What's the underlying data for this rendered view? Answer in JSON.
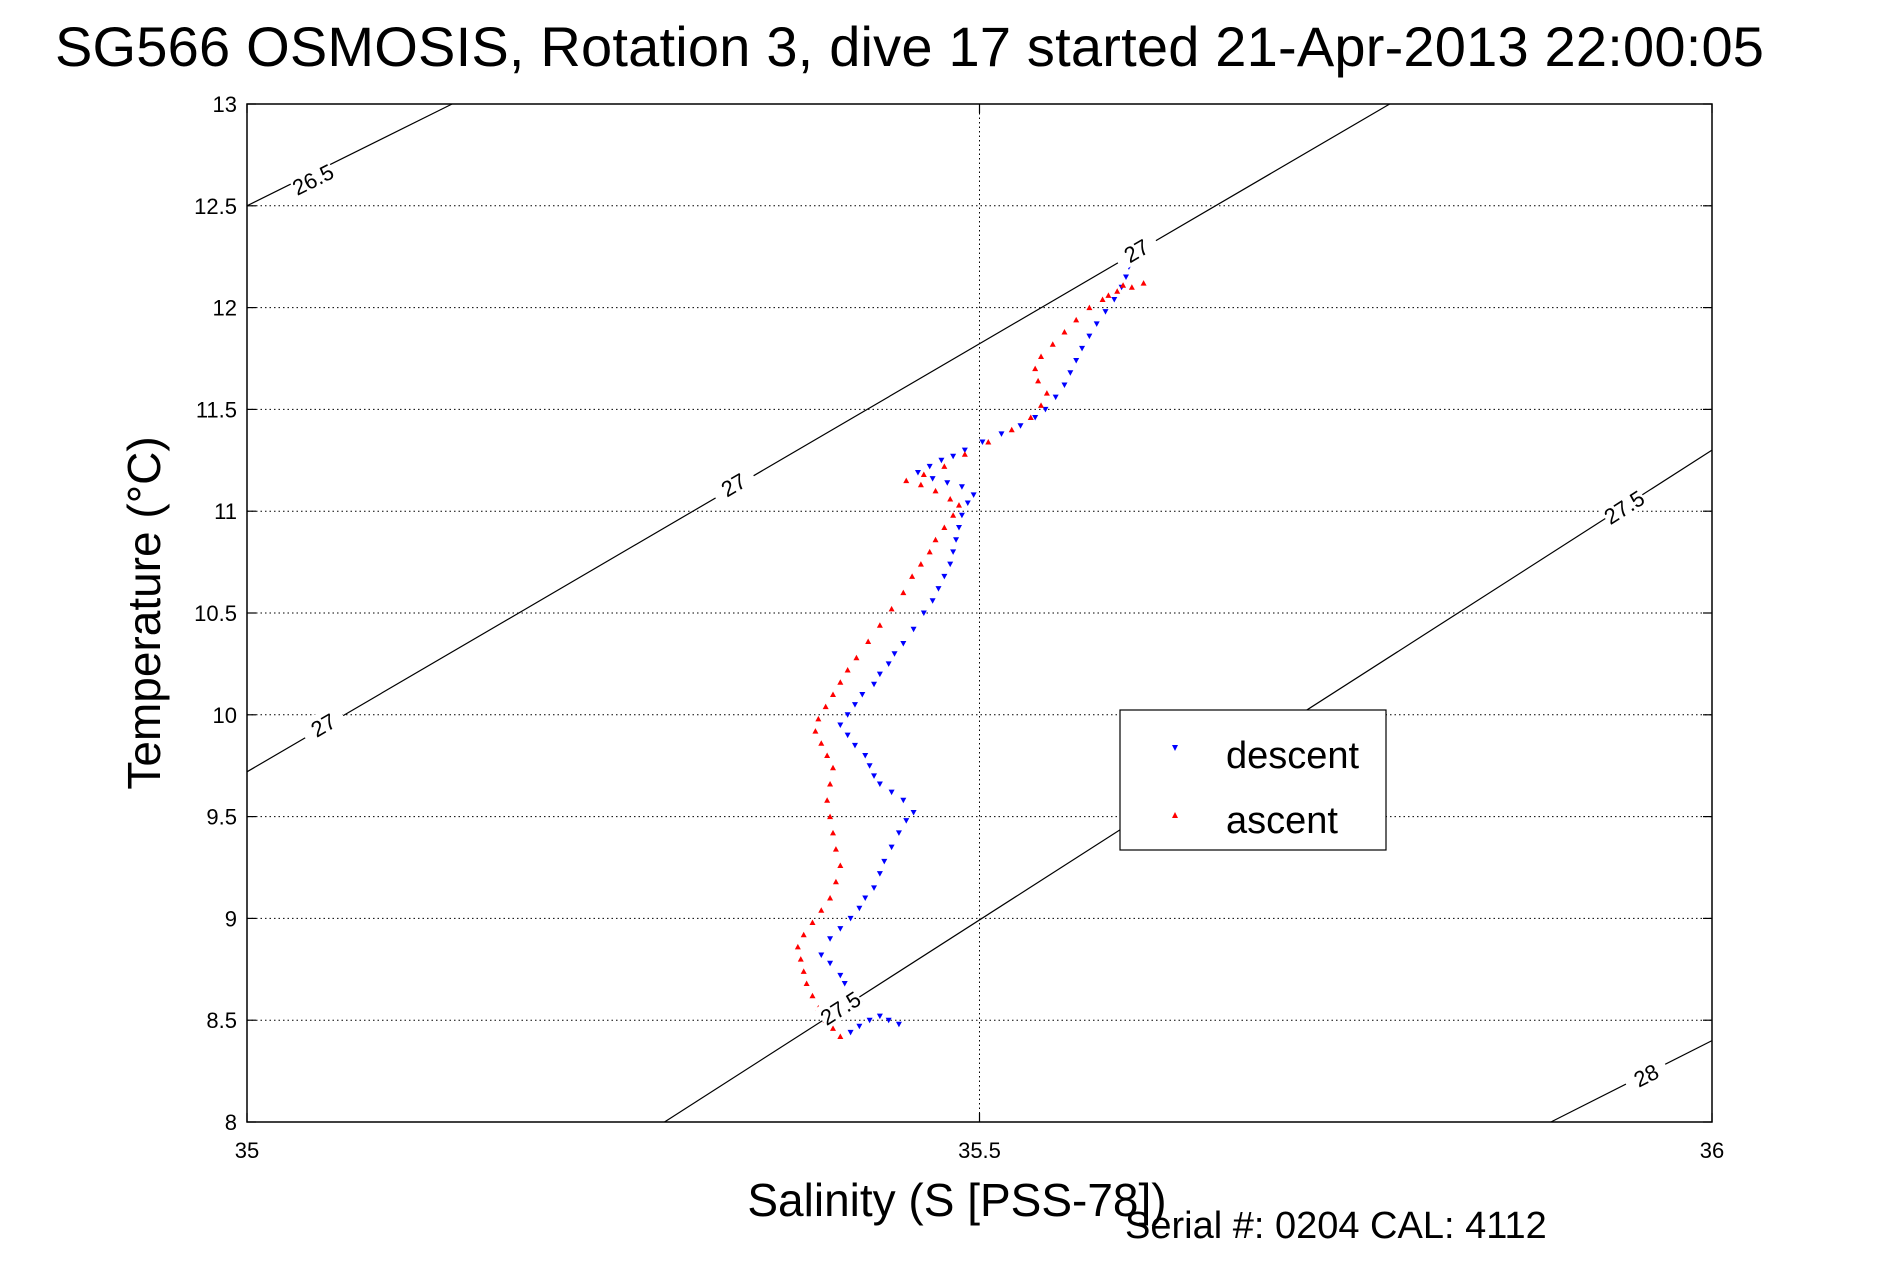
{
  "title": "SG566 OSMOSIS, Rotation 3, dive 17 started 21-Apr-2013 22:00:05",
  "serial_text": "Serial #: 0204  CAL: 4112",
  "colors": {
    "descent": "#0000ff",
    "ascent": "#ff0000",
    "axes": "#000000",
    "grid": "#000000"
  },
  "chart_data": {
    "type": "scatter",
    "title": "SG566 OSMOSIS, Rotation 3, dive 17 started 21-Apr-2013 22:00:05",
    "xlabel": "Salinity (S [PSS-78])",
    "ylabel": "Temperature (°C)",
    "xlim": [
      35,
      36
    ],
    "ylim": [
      8,
      13
    ],
    "xticks": [
      "35",
      "35.5",
      "36"
    ],
    "yticks": [
      "8",
      "8.5",
      "9",
      "9.5",
      "10",
      "10.5",
      "11",
      "11.5",
      "12",
      "12.5",
      "13"
    ],
    "grid": true,
    "legend_position": "center-right",
    "series": [
      {
        "name": "descent",
        "marker": "down-triangle",
        "points": [
          [
            35.412,
            8.44
          ],
          [
            35.418,
            8.47
          ],
          [
            35.425,
            8.5
          ],
          [
            35.432,
            8.52
          ],
          [
            35.438,
            8.5
          ],
          [
            35.445,
            8.48
          ],
          [
            35.418,
            8.58
          ],
          [
            35.412,
            8.62
          ],
          [
            35.408,
            8.68
          ],
          [
            35.405,
            8.72
          ],
          [
            35.398,
            8.78
          ],
          [
            35.392,
            8.82
          ],
          [
            35.398,
            8.9
          ],
          [
            35.405,
            8.95
          ],
          [
            35.412,
            9.0
          ],
          [
            35.418,
            9.05
          ],
          [
            35.422,
            9.1
          ],
          [
            35.428,
            9.15
          ],
          [
            35.432,
            9.22
          ],
          [
            35.435,
            9.28
          ],
          [
            35.44,
            9.35
          ],
          [
            35.445,
            9.42
          ],
          [
            35.45,
            9.48
          ],
          [
            35.455,
            9.52
          ],
          [
            35.448,
            9.58
          ],
          [
            35.44,
            9.62
          ],
          [
            35.432,
            9.66
          ],
          [
            35.428,
            9.7
          ],
          [
            35.425,
            9.75
          ],
          [
            35.422,
            9.8
          ],
          [
            35.415,
            9.85
          ],
          [
            35.41,
            9.9
          ],
          [
            35.405,
            9.95
          ],
          [
            35.41,
            10.0
          ],
          [
            35.415,
            10.05
          ],
          [
            35.42,
            10.1
          ],
          [
            35.428,
            10.15
          ],
          [
            35.432,
            10.2
          ],
          [
            35.438,
            10.25
          ],
          [
            35.442,
            10.3
          ],
          [
            35.448,
            10.35
          ],
          [
            35.455,
            10.42
          ],
          [
            35.462,
            10.5
          ],
          [
            35.468,
            10.56
          ],
          [
            35.472,
            10.62
          ],
          [
            35.476,
            10.68
          ],
          [
            35.48,
            10.74
          ],
          [
            35.482,
            10.8
          ],
          [
            35.484,
            10.86
          ],
          [
            35.486,
            10.92
          ],
          [
            35.488,
            10.98
          ],
          [
            35.492,
            11.04
          ],
          [
            35.496,
            11.08
          ],
          [
            35.488,
            11.12
          ],
          [
            35.478,
            11.14
          ],
          [
            35.468,
            11.16
          ],
          [
            35.458,
            11.19
          ],
          [
            35.466,
            11.22
          ],
          [
            35.474,
            11.25
          ],
          [
            35.482,
            11.27
          ],
          [
            35.49,
            11.3
          ],
          [
            35.502,
            11.34
          ],
          [
            35.515,
            11.38
          ],
          [
            35.528,
            11.42
          ],
          [
            35.538,
            11.46
          ],
          [
            35.545,
            11.5
          ],
          [
            35.552,
            11.56
          ],
          [
            35.558,
            11.62
          ],
          [
            35.562,
            11.68
          ],
          [
            35.566,
            11.74
          ],
          [
            35.57,
            11.8
          ],
          [
            35.575,
            11.86
          ],
          [
            35.58,
            11.92
          ],
          [
            35.586,
            11.98
          ],
          [
            35.592,
            12.04
          ],
          [
            35.597,
            12.1
          ],
          [
            35.6,
            12.15
          ],
          [
            35.602,
            12.2
          ]
        ]
      },
      {
        "name": "ascent",
        "marker": "up-triangle",
        "points": [
          [
            35.405,
            8.42
          ],
          [
            35.4,
            8.46
          ],
          [
            35.395,
            8.5
          ],
          [
            35.39,
            8.56
          ],
          [
            35.386,
            8.62
          ],
          [
            35.382,
            8.68
          ],
          [
            35.38,
            8.74
          ],
          [
            35.378,
            8.8
          ],
          [
            35.376,
            8.86
          ],
          [
            35.38,
            8.92
          ],
          [
            35.386,
            8.98
          ],
          [
            35.392,
            9.04
          ],
          [
            35.398,
            9.1
          ],
          [
            35.402,
            9.18
          ],
          [
            35.405,
            9.26
          ],
          [
            35.402,
            9.34
          ],
          [
            35.4,
            9.42
          ],
          [
            35.398,
            9.5
          ],
          [
            35.396,
            9.58
          ],
          [
            35.398,
            9.66
          ],
          [
            35.4,
            9.74
          ],
          [
            35.396,
            9.8
          ],
          [
            35.392,
            9.86
          ],
          [
            35.388,
            9.92
          ],
          [
            35.39,
            9.98
          ],
          [
            35.395,
            10.04
          ],
          [
            35.4,
            10.1
          ],
          [
            35.405,
            10.16
          ],
          [
            35.41,
            10.22
          ],
          [
            35.416,
            10.28
          ],
          [
            35.424,
            10.36
          ],
          [
            35.432,
            10.44
          ],
          [
            35.44,
            10.52
          ],
          [
            35.448,
            10.6
          ],
          [
            35.454,
            10.68
          ],
          [
            35.46,
            10.74
          ],
          [
            35.466,
            10.8
          ],
          [
            35.47,
            10.86
          ],
          [
            35.476,
            10.92
          ],
          [
            35.482,
            10.98
          ],
          [
            35.486,
            11.03
          ],
          [
            35.48,
            11.06
          ],
          [
            35.47,
            11.1
          ],
          [
            35.46,
            11.13
          ],
          [
            35.45,
            11.15
          ],
          [
            35.462,
            11.18
          ],
          [
            35.476,
            11.22
          ],
          [
            35.49,
            11.28
          ],
          [
            35.506,
            11.34
          ],
          [
            35.522,
            11.4
          ],
          [
            35.535,
            11.46
          ],
          [
            35.542,
            11.52
          ],
          [
            35.546,
            11.58
          ],
          [
            35.54,
            11.64
          ],
          [
            35.538,
            11.7
          ],
          [
            35.542,
            11.76
          ],
          [
            35.55,
            11.82
          ],
          [
            35.558,
            11.88
          ],
          [
            35.566,
            11.94
          ],
          [
            35.575,
            12.0
          ],
          [
            35.584,
            12.04
          ],
          [
            35.594,
            12.08
          ],
          [
            35.604,
            12.1
          ],
          [
            35.612,
            12.12
          ],
          [
            35.598,
            12.11
          ],
          [
            35.588,
            12.06
          ]
        ]
      }
    ],
    "contours": [
      {
        "label": "26.5",
        "points": [
          [
            35.0,
            12.5
          ],
          [
            35.14,
            13.0
          ]
        ],
        "label_at": [
          35.045,
          12.63
        ]
      },
      {
        "label": "27",
        "points": [
          [
            35.0,
            9.72
          ],
          [
            35.78,
            13.0
          ]
        ],
        "label_at": [
          35.332,
          11.13
        ]
      },
      {
        "label": "27",
        "points": [],
        "label_at": [
          35.052,
          9.95
        ]
      },
      {
        "label": "27",
        "points": [],
        "label_at": [
          35.607,
          12.28
        ]
      },
      {
        "label": "27.5",
        "points": [
          [
            35.285,
            8.0
          ],
          [
            36.0,
            11.3
          ]
        ],
        "label_at": [
          35.405,
          8.56
        ]
      },
      {
        "label": "27.5",
        "points": [],
        "label_at": [
          35.94,
          11.02
        ]
      },
      {
        "label": "28",
        "points": [
          [
            35.89,
            8.0
          ],
          [
            36.0,
            8.4
          ]
        ],
        "label_at": [
          35.955,
          8.23
        ]
      }
    ]
  }
}
